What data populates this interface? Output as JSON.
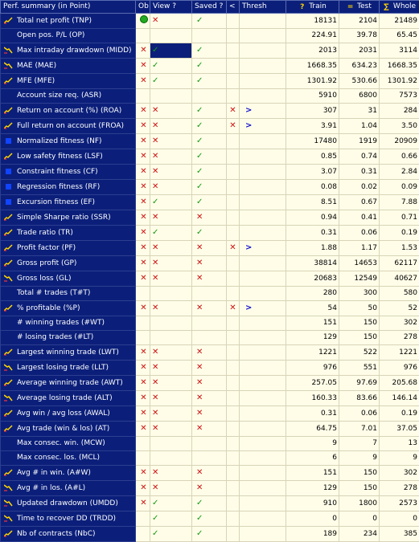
{
  "headers": {
    "summary": "Perf. summary (in Point)",
    "ob": "Ob",
    "view": "View ?",
    "saved": "Saved ?",
    "lt": "<",
    "thresh": "Thresh",
    "train": "Train",
    "test": "Test",
    "whole": "Whole"
  },
  "rows": [
    {
      "name": "Total net profit  (TNP)",
      "icon": "line",
      "ob": "ok",
      "view": "x",
      "saved": "v",
      "lt": "",
      "thresh": "",
      "train": "18131",
      "test": "2104",
      "whole": "21489"
    },
    {
      "name": "Open pos. P/L  (OP)",
      "icon": "",
      "ob": "",
      "view": "",
      "saved": "",
      "lt": "",
      "thresh": "",
      "train": "224.91",
      "test": "39.78",
      "whole": "65.45"
    },
    {
      "name": "Max intraday drawdown  (MIDD)",
      "icon": "down",
      "ob": "x",
      "view": "v",
      "saved": "v",
      "lt": "",
      "thresh": "",
      "train": "2013",
      "test": "2031",
      "whole": "3114",
      "selected": true
    },
    {
      "name": "MAE  (MAE)",
      "icon": "down",
      "ob": "x",
      "view": "v",
      "saved": "v",
      "lt": "",
      "thresh": "",
      "train": "1668.35",
      "test": "634.23",
      "whole": "1668.35"
    },
    {
      "name": "MFE  (MFE)",
      "icon": "line",
      "ob": "x",
      "view": "v",
      "saved": "v",
      "lt": "",
      "thresh": "",
      "train": "1301.92",
      "test": "530.66",
      "whole": "1301.92"
    },
    {
      "name": "Account size req.  (ASR)",
      "icon": "",
      "ob": "",
      "view": "",
      "saved": "",
      "lt": "",
      "thresh": "",
      "train": "5910",
      "test": "6800",
      "whole": "7573"
    },
    {
      "name": "Return on account (%)  (ROA)",
      "icon": "line",
      "ob": "x",
      "view": "x",
      "saved": "v",
      "lt": "x",
      "thresh": ">",
      "train": "307",
      "test": "31",
      "whole": "284"
    },
    {
      "name": "Full return on account  (FROA)",
      "icon": "line",
      "ob": "x",
      "view": "x",
      "saved": "v",
      "lt": "x",
      "thresh": ">",
      "train": "3.91",
      "test": "1.04",
      "whole": "3.50"
    },
    {
      "name": "Normalized fitness  (NF)",
      "icon": "dot",
      "ob": "x",
      "view": "x",
      "saved": "v",
      "lt": "",
      "thresh": "",
      "train": "17480",
      "test": "1919",
      "whole": "20909"
    },
    {
      "name": "Low safety fitness  (LSF)",
      "icon": "line",
      "ob": "x",
      "view": "x",
      "saved": "v",
      "lt": "",
      "thresh": "",
      "train": "0.85",
      "test": "0.74",
      "whole": "0.66"
    },
    {
      "name": "Constraint fitness  (CF)",
      "icon": "dot",
      "ob": "x",
      "view": "x",
      "saved": "v",
      "lt": "",
      "thresh": "",
      "train": "3.07",
      "test": "0.31",
      "whole": "2.84"
    },
    {
      "name": "Regression fitness  (RF)",
      "icon": "dot",
      "ob": "x",
      "view": "x",
      "saved": "v",
      "lt": "",
      "thresh": "",
      "train": "0.08",
      "test": "0.02",
      "whole": "0.09"
    },
    {
      "name": "Excursion fitness  (EF)",
      "icon": "dot",
      "ob": "x",
      "view": "v",
      "saved": "v",
      "lt": "",
      "thresh": "",
      "train": "8.51",
      "test": "0.67",
      "whole": "7.88"
    },
    {
      "name": "Simple Sharpe ratio  (SSR)",
      "icon": "line",
      "ob": "x",
      "view": "x",
      "saved": "x",
      "lt": "",
      "thresh": "",
      "train": "0.94",
      "test": "0.41",
      "whole": "0.71"
    },
    {
      "name": "Trade ratio  (TR)",
      "icon": "line",
      "ob": "x",
      "view": "v",
      "saved": "v",
      "lt": "",
      "thresh": "",
      "train": "0.31",
      "test": "0.06",
      "whole": "0.19"
    },
    {
      "name": "Profit factor  (PF)",
      "icon": "line",
      "ob": "x",
      "view": "x",
      "saved": "x",
      "lt": "x",
      "thresh": ">",
      "train": "1.88",
      "test": "1.17",
      "whole": "1.53"
    },
    {
      "name": "Gross profit  (GP)",
      "icon": "line",
      "ob": "x",
      "view": "x",
      "saved": "x",
      "lt": "",
      "thresh": "",
      "train": "38814",
      "test": "14653",
      "whole": "62117"
    },
    {
      "name": "Gross loss  (GL)",
      "icon": "down",
      "ob": "x",
      "view": "x",
      "saved": "x",
      "lt": "",
      "thresh": "",
      "train": "20683",
      "test": "12549",
      "whole": "40627"
    },
    {
      "name": "Total # trades  (T#T)",
      "icon": "",
      "ob": "",
      "view": "",
      "saved": "",
      "lt": "",
      "thresh": "",
      "train": "280",
      "test": "300",
      "whole": "580"
    },
    {
      "name": "% profitable  (%P)",
      "icon": "line",
      "ob": "x",
      "view": "x",
      "saved": "x",
      "lt": "x",
      "thresh": ">",
      "train": "54",
      "test": "50",
      "whole": "52"
    },
    {
      "name": "# winning trades  (#WT)",
      "icon": "",
      "ob": "",
      "view": "",
      "saved": "",
      "lt": "",
      "thresh": "",
      "train": "151",
      "test": "150",
      "whole": "302"
    },
    {
      "name": "# losing trades  (#LT)",
      "icon": "",
      "ob": "",
      "view": "",
      "saved": "",
      "lt": "",
      "thresh": "",
      "train": "129",
      "test": "150",
      "whole": "278"
    },
    {
      "name": "Largest winning trade  (LWT)",
      "icon": "line",
      "ob": "x",
      "view": "x",
      "saved": "x",
      "lt": "",
      "thresh": "",
      "train": "1221",
      "test": "522",
      "whole": "1221"
    },
    {
      "name": "Largest losing trade  (LLT)",
      "icon": "down",
      "ob": "x",
      "view": "x",
      "saved": "x",
      "lt": "",
      "thresh": "",
      "train": "976",
      "test": "551",
      "whole": "976"
    },
    {
      "name": "Average winning trade  (AWT)",
      "icon": "line",
      "ob": "x",
      "view": "x",
      "saved": "x",
      "lt": "",
      "thresh": "",
      "train": "257.05",
      "test": "97.69",
      "whole": "205.68"
    },
    {
      "name": "Average losing trade  (ALT)",
      "icon": "down",
      "ob": "x",
      "view": "x",
      "saved": "x",
      "lt": "",
      "thresh": "",
      "train": "160.33",
      "test": "83.66",
      "whole": "146.14"
    },
    {
      "name": "Avg win / avg loss  (AWAL)",
      "icon": "line",
      "ob": "x",
      "view": "x",
      "saved": "x",
      "lt": "",
      "thresh": "",
      "train": "0.31",
      "test": "0.06",
      "whole": "0.19"
    },
    {
      "name": "Avg trade (win & los)  (AT)",
      "icon": "line",
      "ob": "x",
      "view": "x",
      "saved": "x",
      "lt": "",
      "thresh": "",
      "train": "64.75",
      "test": "7.01",
      "whole": "37.05"
    },
    {
      "name": "Max consec. win.  (MCW)",
      "icon": "",
      "ob": "",
      "view": "",
      "saved": "",
      "lt": "",
      "thresh": "",
      "train": "9",
      "test": "7",
      "whole": "13"
    },
    {
      "name": "Max consec. los.  (MCL)",
      "icon": "",
      "ob": "",
      "view": "",
      "saved": "",
      "lt": "",
      "thresh": "",
      "train": "6",
      "test": "9",
      "whole": "9"
    },
    {
      "name": "Avg # in win.  (A#W)",
      "icon": "line",
      "ob": "x",
      "view": "x",
      "saved": "x",
      "lt": "",
      "thresh": "",
      "train": "151",
      "test": "150",
      "whole": "302"
    },
    {
      "name": "Avg # in los.  (A#L)",
      "icon": "down",
      "ob": "x",
      "view": "x",
      "saved": "x",
      "lt": "",
      "thresh": "",
      "train": "129",
      "test": "150",
      "whole": "278"
    },
    {
      "name": "Updated drawdown  (UMDD)",
      "icon": "down",
      "ob": "x",
      "view": "v",
      "saved": "v",
      "lt": "",
      "thresh": "",
      "train": "910",
      "test": "1800",
      "whole": "2573"
    },
    {
      "name": "Time to recover DD  (TRDD)",
      "icon": "down",
      "ob": "",
      "view": "v",
      "saved": "v",
      "lt": "",
      "thresh": "",
      "train": "0",
      "test": "0",
      "whole": "0"
    },
    {
      "name": "Nb of contracts  (NbC)",
      "icon": "line",
      "ob": "",
      "view": "v",
      "saved": "v",
      "lt": "",
      "thresh": "",
      "train": "189",
      "test": "234",
      "whole": "385"
    }
  ],
  "colors": {
    "header_bg": "#0b1f7a",
    "cell_bg": "#fffde8",
    "cross": "#cc1111",
    "check": "#119911",
    "arrow": "#1111cc"
  }
}
